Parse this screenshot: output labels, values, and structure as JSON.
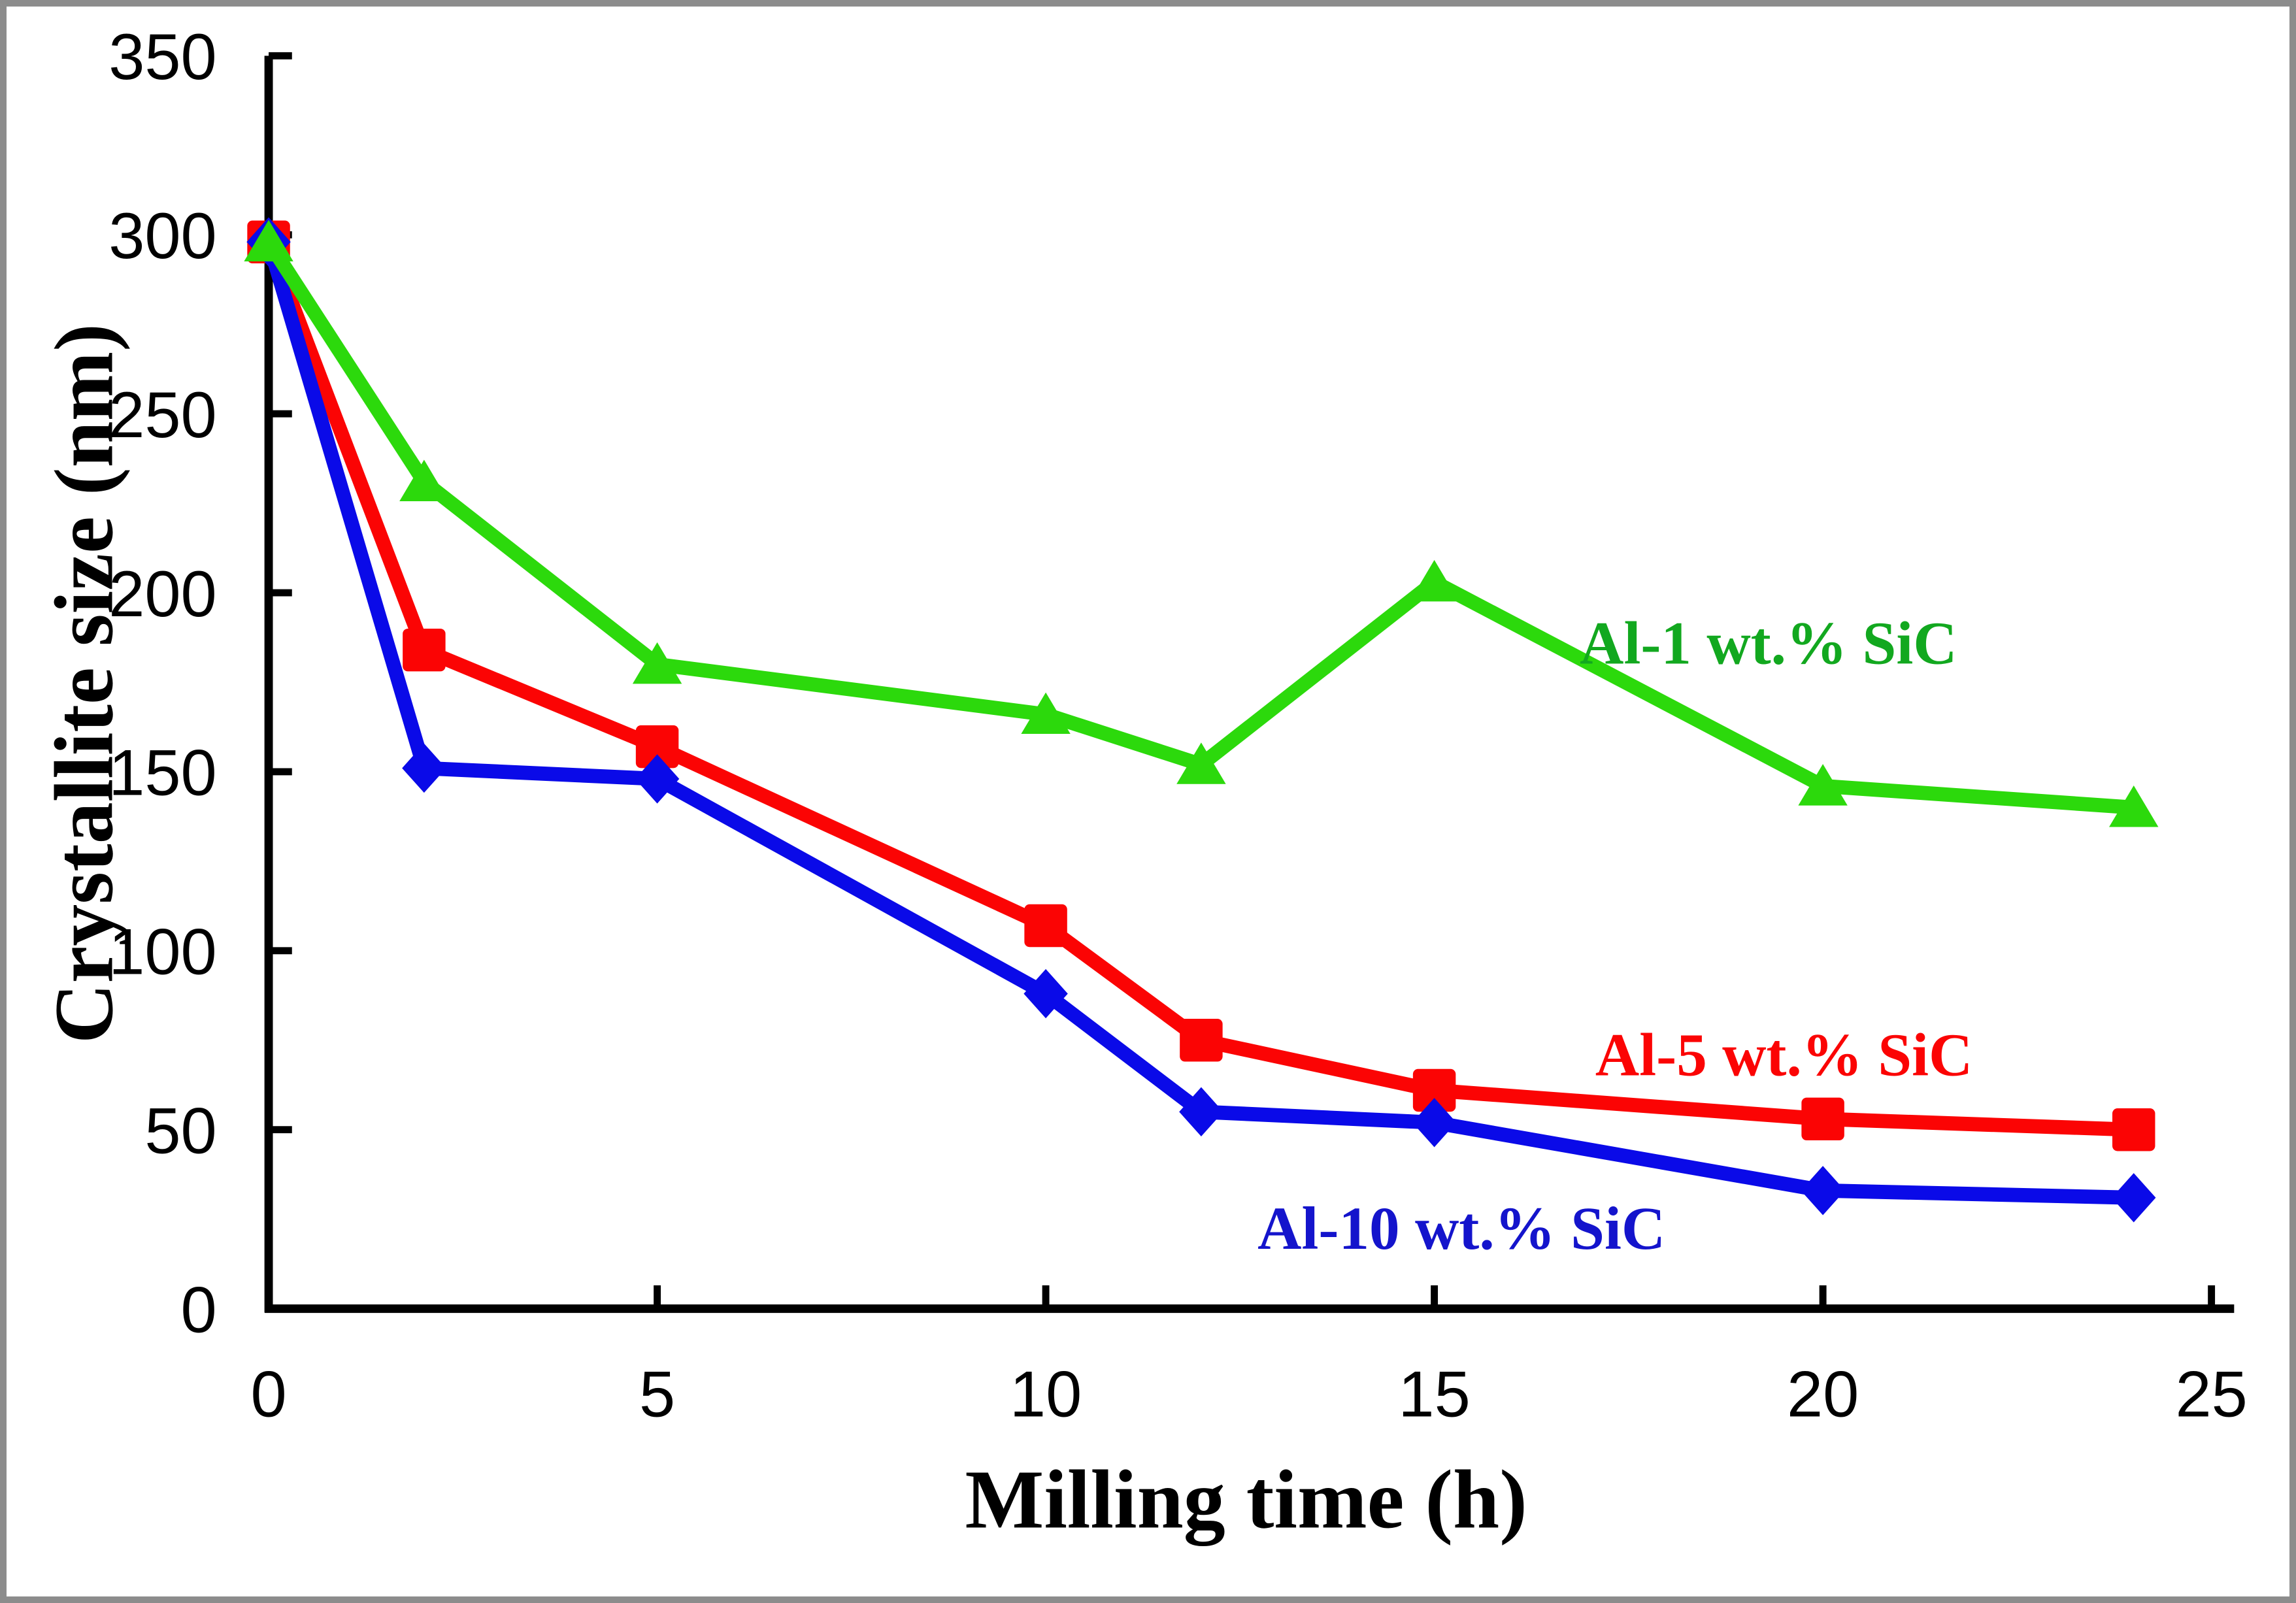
{
  "figure": {
    "border_color": "#8C8C8C",
    "background_color": "#FFFFFF",
    "axis_color": "#000000",
    "tick_label_color": "#000000"
  },
  "chart_data": {
    "type": "line",
    "title": "",
    "xlabel": "Milling time (h)",
    "ylabel": "Crystallite size (nm)",
    "x": [
      0,
      2,
      5,
      10,
      12,
      15,
      20,
      24
    ],
    "series": [
      {
        "name": "Al-5 wt.% SiC",
        "marker": "square",
        "color": "#FB0404",
        "label_color": "#FB0404",
        "values": [
          298,
          184,
          157,
          107,
          75,
          61,
          53,
          50
        ],
        "label_anchor_x": 19.5,
        "label_anchor_y": 71
      },
      {
        "name": "Al-10 wt.% SiC",
        "marker": "diamond",
        "color": "#0A0AE8",
        "label_color": "#1414CC",
        "values": [
          298,
          151,
          148,
          88,
          55,
          52,
          33,
          31
        ],
        "label_anchor_x": 15.35,
        "label_anchor_y": 22.5
      },
      {
        "name": "Al-1 wt.% SiC",
        "marker": "triangle",
        "color": "#2CD90C",
        "label_color": "#12A81F",
        "values": [
          298,
          231,
          180,
          166,
          152,
          203,
          146,
          140
        ],
        "label_anchor_x": 19.3,
        "label_anchor_y": 186
      }
    ],
    "xlim": [
      0,
      25
    ],
    "ylim": [
      0,
      350
    ],
    "xticks": [
      0,
      5,
      10,
      15,
      20,
      25
    ],
    "yticks": [
      0,
      50,
      100,
      150,
      200,
      250,
      300,
      350
    ],
    "grid": false,
    "legend": "inline-labels"
  }
}
